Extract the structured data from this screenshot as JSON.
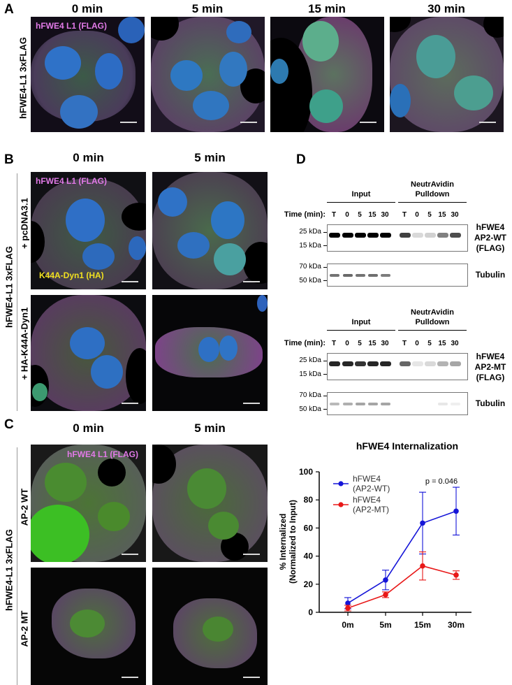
{
  "panels": {
    "A": {
      "letter": "A",
      "times": [
        "0 min",
        "5 min",
        "15 min",
        "30 min"
      ],
      "row_label": "hFWE4-L1 3xFLAG",
      "overlay": "hFWE4 L1 (FLAG)"
    },
    "B": {
      "letter": "B",
      "times": [
        "0 min",
        "5 min"
      ],
      "row_label": "hFWE4-L1 3xFLAG",
      "rows": [
        "+ pcDNA3.1",
        "+ HA-K44A-Dyn1"
      ],
      "overlay_top": "hFWE4 L1 (FLAG)",
      "overlay_bottom": "K44A-Dyn1 (HA)"
    },
    "C": {
      "letter": "C",
      "times": [
        "0 min",
        "5 min"
      ],
      "row_label": "hFWE4-L1 3xFLAG",
      "rows": [
        "AP-2 WT",
        "AP-2 MT"
      ],
      "overlay": "hFWE4 L1 (FLAG)"
    },
    "D": {
      "letter": "D",
      "blots": [
        {
          "input": "Input",
          "pulldown_line1": "NeutrAvidin",
          "pulldown_line2": "Pulldown",
          "time_label": "Time (min):",
          "lanes": [
            "T",
            "0",
            "5",
            "15",
            "30",
            "T",
            "0",
            "5",
            "15",
            "30"
          ],
          "mw_top": [
            "25 kDa",
            "15 kDa"
          ],
          "mw_bottom": [
            "70 kDa",
            "50 kDa"
          ],
          "label_line1": "hFWE4",
          "label_line2": "AP2-WT",
          "label_line3": "(FLAG)",
          "tubulin": "Tubulin",
          "band_intensity": [
            1.0,
            1.0,
            1.0,
            1.0,
            1.0,
            0.75,
            0.15,
            0.18,
            0.5,
            0.7
          ],
          "tubulin_intensity": [
            0.7,
            0.75,
            0.7,
            0.72,
            0.65,
            0,
            0,
            0,
            0,
            0
          ]
        },
        {
          "input": "Input",
          "pulldown_line1": "NeutrAvidin",
          "pulldown_line2": "Pulldown",
          "time_label": "Time (min):",
          "lanes": [
            "T",
            "0",
            "5",
            "15",
            "30",
            "T",
            "0",
            "5",
            "15",
            "30"
          ],
          "mw_top": [
            "25 kDa",
            "15 kDa"
          ],
          "mw_bottom": [
            "70 kDa",
            "50 kDa"
          ],
          "label_line1": "hFWE4",
          "label_line2": "AP2-MT",
          "label_line3": "(FLAG)",
          "tubulin": "Tubulin",
          "band_intensity": [
            0.85,
            0.85,
            0.8,
            0.85,
            0.85,
            0.6,
            0.1,
            0.15,
            0.3,
            0.35
          ],
          "tubulin_intensity": [
            0.35,
            0.4,
            0.45,
            0.45,
            0.45,
            0,
            0,
            0,
            0.12,
            0.08
          ]
        }
      ]
    }
  },
  "chart_data": {
    "type": "line",
    "title": "hFWE4 Internalization",
    "ylabel_line1": "% Internalized",
    "ylabel_line2": "(Normalized to Input)",
    "categories": [
      "0m",
      "5m",
      "15m",
      "30m"
    ],
    "ylim": [
      0,
      100
    ],
    "yticks": [
      "0",
      "20",
      "40",
      "60",
      "80",
      "100"
    ],
    "annotation": "p = 0.046",
    "series": [
      {
        "name_line1": "hFWE4",
        "name_line2": "(AP2-WT)",
        "color": "#1515d8",
        "values": [
          6.5,
          23,
          63.5,
          72
        ],
        "err": [
          4,
          7,
          22,
          17
        ]
      },
      {
        "name_line1": "hFWE4",
        "name_line2": "(AP2-MT)",
        "color": "#e81818",
        "values": [
          3,
          12.5,
          33,
          26.5
        ],
        "err": [
          2,
          2,
          10,
          3
        ]
      }
    ]
  }
}
